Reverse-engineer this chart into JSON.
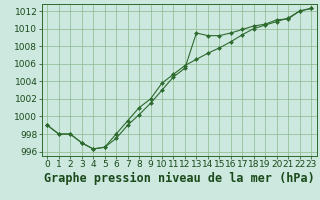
{
  "title": "Graphe pression niveau de la mer (hPa)",
  "xlabel_hours": [
    0,
    1,
    2,
    3,
    4,
    5,
    6,
    7,
    8,
    9,
    10,
    11,
    12,
    13,
    14,
    15,
    16,
    17,
    18,
    19,
    20,
    21,
    22,
    23
  ],
  "line1": [
    999.0,
    998.0,
    998.0,
    997.0,
    996.3,
    996.5,
    997.5,
    999.0,
    1000.2,
    1001.5,
    1003.0,
    1004.5,
    1005.5,
    1009.5,
    1009.2,
    1009.2,
    1009.5,
    1009.9,
    1010.3,
    1010.5,
    1011.0,
    1011.1,
    1012.0,
    1012.3
  ],
  "line2": [
    999.0,
    998.0,
    998.0,
    997.0,
    996.3,
    996.5,
    998.0,
    999.5,
    1001.0,
    1002.0,
    1003.8,
    1004.8,
    1005.8,
    1006.5,
    1007.2,
    1007.8,
    1008.5,
    1009.3,
    1010.0,
    1010.4,
    1010.8,
    1011.2,
    1012.0,
    1012.3
  ],
  "line_color": "#2d6a2d",
  "marker_color": "#2d6a2d",
  "bg_color": "#cce8df",
  "grid_color": "#8cba8c",
  "axis_color": "#2d6a2d",
  "text_color": "#1a4a1a",
  "ylim": [
    995.5,
    1012.8
  ],
  "yticks": [
    996,
    998,
    1000,
    1002,
    1004,
    1006,
    1008,
    1010,
    1012
  ],
  "title_fontsize": 8.5,
  "tick_fontsize": 6.5,
  "figsize": [
    3.2,
    2.0
  ],
  "dpi": 100
}
